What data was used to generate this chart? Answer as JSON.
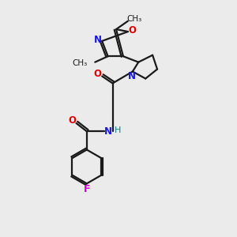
{
  "bg_color": "#ebebeb",
  "bond_color": "#1a1a1a",
  "n_color": "#1414ff",
  "o_color": "#e60000",
  "f_color": "#cc00cc",
  "h_color": "#008080",
  "line_width": 1.6,
  "figsize": [
    3.0,
    3.0
  ],
  "dpi": 100,
  "xlim": [
    0,
    10
  ],
  "ylim": [
    0,
    10
  ]
}
